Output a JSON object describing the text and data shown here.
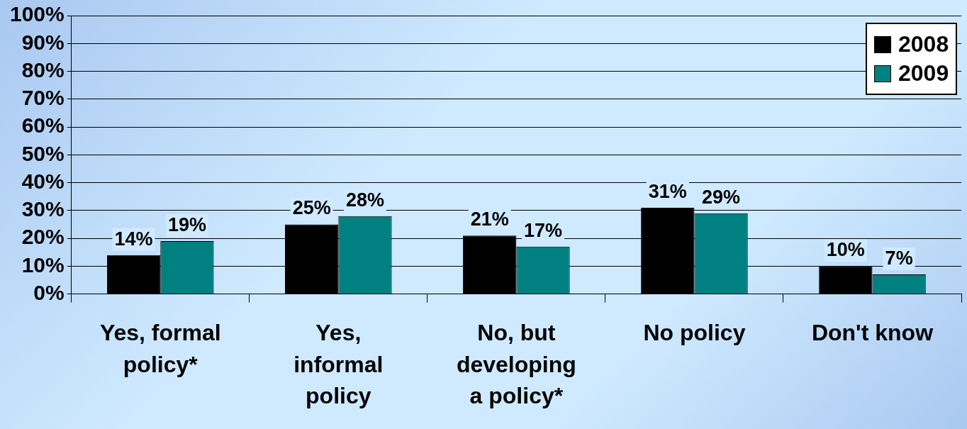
{
  "chart_data": {
    "type": "bar",
    "categories": [
      "Yes, formal policy*",
      "Yes, informal policy",
      "No, but developing a policy*",
      "No policy",
      "Don't know"
    ],
    "series": [
      {
        "name": "2008",
        "color": "#000000",
        "values": [
          14,
          25,
          21,
          31,
          10
        ]
      },
      {
        "name": "2009",
        "color": "#008080",
        "values": [
          19,
          28,
          17,
          29,
          7
        ]
      }
    ],
    "ylim": [
      0,
      100
    ],
    "yticks": [
      {
        "value": 0,
        "label": "0%"
      },
      {
        "value": 10,
        "label": "10%"
      },
      {
        "value": 20,
        "label": "20%"
      },
      {
        "value": 30,
        "label": "30%"
      },
      {
        "value": 40,
        "label": "40%"
      },
      {
        "value": 50,
        "label": "50%"
      },
      {
        "value": 60,
        "label": "60%"
      },
      {
        "value": 70,
        "label": "70%"
      },
      {
        "value": 80,
        "label": "80%"
      },
      {
        "value": 90,
        "label": "90%"
      },
      {
        "value": 100,
        "label": "100%"
      }
    ],
    "value_labels": [
      [
        "14%",
        "25%",
        "21%",
        "31%",
        "10%"
      ],
      [
        "19%",
        "28%",
        "17%",
        "29%",
        "7%"
      ]
    ],
    "grid": "y",
    "legend": "top right"
  }
}
